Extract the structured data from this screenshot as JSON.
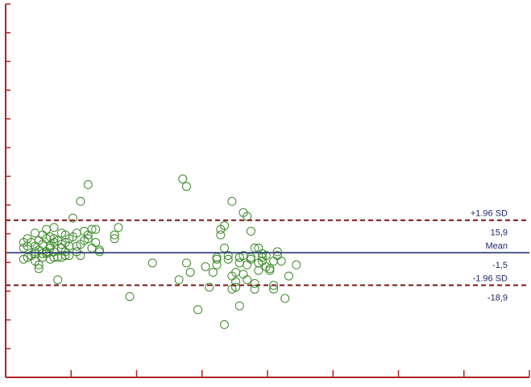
{
  "chart_data": {
    "type": "scatter",
    "title": "",
    "xlabel": "",
    "ylabel": "",
    "xlim": [
      0,
      100
    ],
    "ylim": [
      -70,
      130
    ],
    "grid": false,
    "x_tick_count": 9,
    "y_tick_count": 14,
    "points_x": [
      2,
      2,
      2,
      3,
      3,
      3,
      4,
      4,
      5,
      5,
      5,
      5,
      5,
      6,
      6,
      6,
      6,
      7,
      7,
      7,
      7,
      8,
      8,
      8,
      8,
      9,
      9,
      9,
      9,
      10,
      10,
      10,
      10,
      10,
      11,
      11,
      11,
      12,
      12,
      12,
      12,
      13,
      13,
      13,
      13,
      14,
      14,
      14,
      15,
      15,
      16,
      16,
      16,
      17,
      17,
      17,
      18,
      18,
      19,
      19,
      20,
      20,
      21,
      21,
      22,
      22,
      26,
      26,
      27,
      30,
      36,
      43,
      44,
      45,
      46,
      48,
      50,
      51,
      52,
      53,
      53,
      53,
      54,
      54,
      55,
      55,
      55,
      56,
      56,
      57,
      57,
      58,
      58,
      58,
      59,
      59,
      59,
      59,
      60,
      60,
      60,
      61,
      61,
      61,
      62,
      62,
      62,
      63,
      63,
      63,
      64,
      64,
      64,
      65,
      65,
      65,
      66,
      66,
      67,
      67,
      68,
      68,
      68,
      69,
      69,
      70,
      71,
      72,
      74
    ],
    "points_y": [
      4,
      1,
      -5,
      6,
      2,
      -4,
      4,
      -3,
      -2,
      -6,
      2,
      9,
      -1,
      5,
      0,
      -8,
      -10,
      3,
      -4,
      8,
      -2,
      11,
      6,
      -1,
      -2,
      7,
      2,
      -5,
      1,
      12,
      6,
      -1,
      -4,
      4,
      -4,
      5,
      -16,
      9,
      3,
      1,
      -4,
      8,
      4,
      -1,
      -3,
      6,
      2,
      -3,
      17,
      7,
      9,
      2,
      -1,
      26,
      -3,
      3,
      10,
      5,
      8,
      6,
      11,
      1,
      4,
      11,
      -1,
      0,
      8,
      6,
      12,
      -25,
      -7,
      -16,
      38,
      -7,
      -12,
      -32,
      -9,
      -20,
      -12,
      -8,
      -5,
      -4,
      11,
      8,
      1,
      13,
      -40,
      -5,
      -3,
      -14,
      -21,
      -20,
      -17,
      -12,
      -7,
      -4,
      -4,
      -30,
      -13,
      20,
      -3,
      -16,
      18,
      -8,
      -4,
      -5,
      10,
      1,
      -18,
      -21,
      -7,
      -11,
      1,
      -6,
      -4,
      -2,
      -9,
      -3,
      -10,
      -11,
      -19,
      -6,
      -21,
      -3,
      -1,
      -6,
      -26,
      -14,
      -8
    ],
    "outliers_x": [
      19,
      45,
      57
    ],
    "outliers_y": [
      35,
      34,
      26
    ],
    "lines": [
      {
        "name": "mean",
        "value": -1.5,
        "label": "Mean",
        "value_label": "-1,5",
        "style": "solid",
        "color": "#2b3a7a"
      },
      {
        "name": "upper-loa",
        "value": 15.9,
        "label": "+1.96 SD",
        "value_label": "15,9",
        "style": "dashed",
        "color": "#7a1515"
      },
      {
        "name": "lower-loa",
        "value": -18.9,
        "label": "-1.96 SD",
        "value_label": "-18,9",
        "style": "dashed",
        "color": "#7a1515"
      }
    ],
    "colors": {
      "axis": "#b22222",
      "points": "#3d8a2a",
      "mean_text": "#1f2a6b"
    }
  }
}
